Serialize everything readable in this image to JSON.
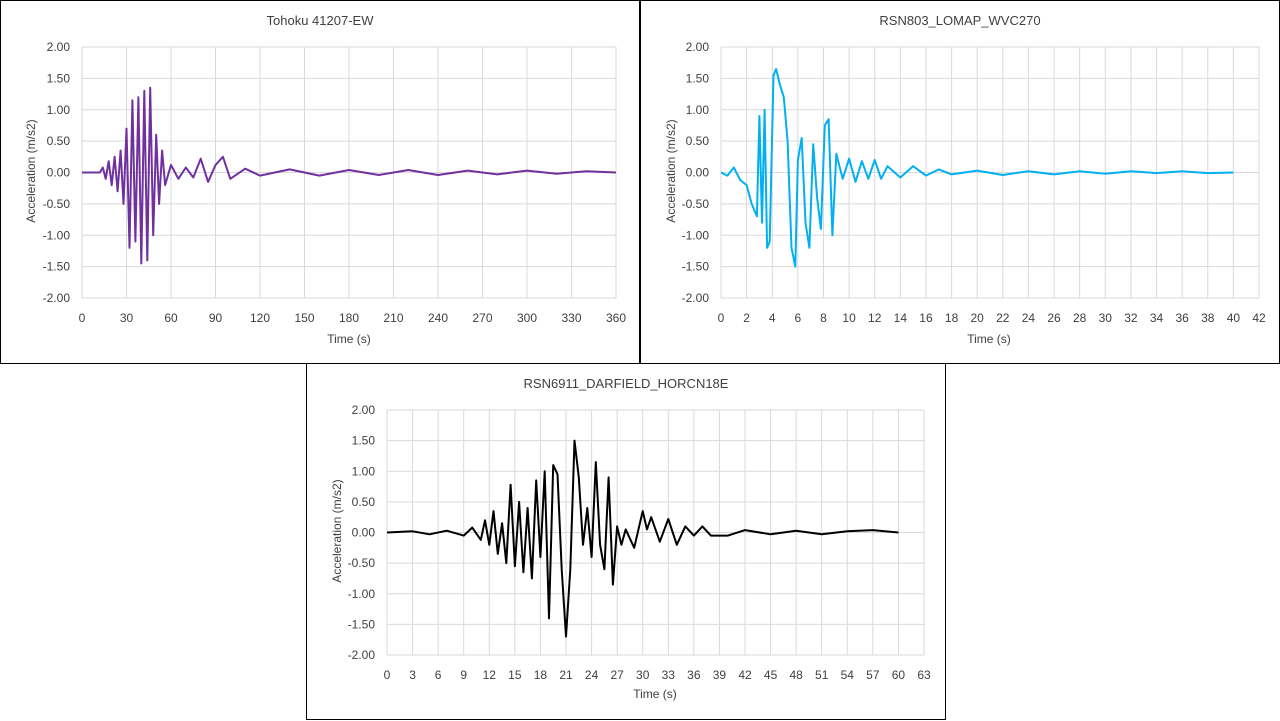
{
  "chart_data": [
    {
      "type": "line",
      "title": "Tohoku 41207-EW",
      "xlabel": "Time (s)",
      "ylabel": "Acceleration (m/s2)",
      "xlim": [
        0,
        360
      ],
      "ylim": [
        -2,
        2
      ],
      "xticks": [
        "0",
        "30",
        "60",
        "90",
        "120",
        "150",
        "180",
        "210",
        "240",
        "270",
        "300",
        "330",
        "360"
      ],
      "yticks": [
        "2.00",
        "1.50",
        "1.00",
        "0.50",
        "0.00",
        "-0.50",
        "-1.00",
        "-1.50",
        "-2.00"
      ],
      "grid": true,
      "color": "#7030A0",
      "series": [
        {
          "x": [
            0,
            12,
            14,
            16,
            18,
            20,
            22,
            24,
            26,
            28,
            30,
            32,
            34,
            36,
            38,
            40,
            42,
            44,
            46,
            48,
            50,
            52,
            54,
            56,
            60,
            65,
            70,
            75,
            80,
            85,
            90,
            95,
            100,
            110,
            120,
            140,
            160,
            180,
            200,
            220,
            240,
            260,
            280,
            300,
            320,
            340,
            360
          ],
          "y": [
            0,
            0,
            0.08,
            -0.1,
            0.18,
            -0.2,
            0.25,
            -0.3,
            0.35,
            -0.5,
            0.7,
            -1.2,
            1.15,
            -1.1,
            1.2,
            -1.45,
            1.3,
            -1.4,
            1.35,
            -1.0,
            0.6,
            -0.5,
            0.35,
            -0.2,
            0.12,
            -0.1,
            0.08,
            -0.08,
            0.22,
            -0.15,
            0.12,
            0.25,
            -0.1,
            0.06,
            -0.05,
            0.05,
            -0.05,
            0.04,
            -0.04,
            0.04,
            -0.04,
            0.03,
            -0.03,
            0.03,
            -0.02,
            0.02,
            0
          ]
        }
      ]
    },
    {
      "type": "line",
      "title": "RSN803_LOMAP_WVC270",
      "xlabel": "Time (s)",
      "ylabel": "Acceleration (m/s2)",
      "xlim": [
        0,
        42
      ],
      "ylim": [
        -2,
        2
      ],
      "xticks": [
        "0",
        "2",
        "4",
        "6",
        "8",
        "10",
        "12",
        "14",
        "16",
        "18",
        "20",
        "22",
        "24",
        "26",
        "28",
        "30",
        "32",
        "34",
        "36",
        "38",
        "40",
        "42"
      ],
      "yticks": [
        "2.00",
        "1.50",
        "1.00",
        "0.50",
        "0.00",
        "-0.50",
        "-1.00",
        "-1.50",
        "-2.00"
      ],
      "grid": true,
      "color": "#00B0F0",
      "series": [
        {
          "x": [
            0,
            0.5,
            1.0,
            1.5,
            2.0,
            2.4,
            2.8,
            3.0,
            3.2,
            3.4,
            3.6,
            3.8,
            4.1,
            4.3,
            4.6,
            4.9,
            5.2,
            5.5,
            5.8,
            6.0,
            6.3,
            6.6,
            6.9,
            7.2,
            7.5,
            7.8,
            8.1,
            8.4,
            8.7,
            9.0,
            9.5,
            10,
            10.5,
            11,
            11.5,
            12,
            12.5,
            13,
            14,
            15,
            16,
            17,
            18,
            20,
            22,
            24,
            26,
            28,
            30,
            32,
            34,
            36,
            38,
            40
          ],
          "y": [
            0,
            -0.05,
            0.08,
            -0.12,
            -0.2,
            -0.5,
            -0.7,
            0.9,
            -0.8,
            1.0,
            -1.2,
            -1.1,
            1.55,
            1.65,
            1.4,
            1.2,
            0.5,
            -1.2,
            -1.5,
            0.2,
            0.55,
            -0.8,
            -1.2,
            0.45,
            -0.4,
            -0.9,
            0.75,
            0.85,
            -1.0,
            0.3,
            -0.1,
            0.22,
            -0.15,
            0.18,
            -0.1,
            0.2,
            -0.1,
            0.1,
            -0.08,
            0.1,
            -0.05,
            0.05,
            -0.03,
            0.03,
            -0.04,
            0.02,
            -0.03,
            0.02,
            -0.02,
            0.02,
            -0.01,
            0.02,
            -0.01,
            0
          ]
        }
      ]
    },
    {
      "type": "line",
      "title": "RSN6911_DARFIELD_HORCN18E",
      "xlabel": "Time (s)",
      "ylabel": "Acceleration (m/s2)",
      "xlim": [
        0,
        63
      ],
      "ylim": [
        -2,
        2
      ],
      "xticks": [
        "0",
        "3",
        "6",
        "9",
        "12",
        "15",
        "18",
        "21",
        "24",
        "27",
        "30",
        "33",
        "36",
        "39",
        "42",
        "45",
        "48",
        "51",
        "54",
        "57",
        "60",
        "63"
      ],
      "yticks": [
        "2.00",
        "1.50",
        "1.00",
        "0.50",
        "0.00",
        "-0.50",
        "-1.00",
        "-1.50",
        "-2.00"
      ],
      "grid": true,
      "color": "#000000",
      "series": [
        {
          "x": [
            0,
            3,
            5,
            7,
            9,
            10,
            11,
            11.5,
            12,
            12.5,
            13,
            13.5,
            14,
            14.5,
            15,
            15.5,
            16,
            16.5,
            17,
            17.5,
            18,
            18.5,
            19,
            19.5,
            20,
            20.5,
            21,
            21.5,
            22,
            22.5,
            23,
            23.5,
            24,
            24.5,
            25,
            25.5,
            26,
            26.5,
            27,
            27.5,
            28,
            29,
            30,
            30.5,
            31,
            32,
            33,
            34,
            35,
            36,
            37,
            38,
            40,
            42,
            45,
            48,
            51,
            54,
            57,
            60
          ],
          "y": [
            0,
            0.02,
            -0.03,
            0.03,
            -0.05,
            0.08,
            -0.12,
            0.2,
            -0.2,
            0.35,
            -0.35,
            0.15,
            -0.5,
            0.78,
            -0.55,
            0.5,
            -0.65,
            0.4,
            -0.75,
            0.85,
            -0.4,
            1.0,
            -1.4,
            1.1,
            0.95,
            -0.6,
            -1.7,
            -0.6,
            1.5,
            0.9,
            -0.2,
            0.4,
            -0.4,
            1.15,
            -0.2,
            -0.6,
            0.9,
            -0.85,
            0.1,
            -0.2,
            0.05,
            -0.25,
            0.35,
            0.05,
            0.25,
            -0.15,
            0.22,
            -0.2,
            0.1,
            -0.05,
            0.1,
            -0.05,
            -0.05,
            0.04,
            -0.03,
            0.03,
            -0.03,
            0.02,
            0.04,
            0
          ]
        }
      ]
    }
  ]
}
